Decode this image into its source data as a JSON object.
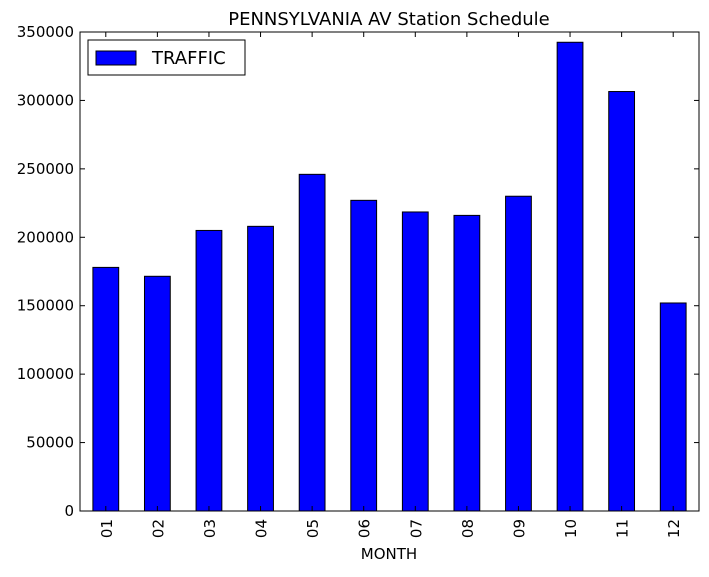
{
  "chart_data": {
    "type": "bar",
    "title": "PENNSYLVANIA AV Station Schedule",
    "xlabel": "MONTH",
    "ylabel": "",
    "categories": [
      "01",
      "02",
      "03",
      "04",
      "05",
      "06",
      "07",
      "08",
      "09",
      "10",
      "11",
      "12"
    ],
    "series": [
      {
        "name": "TRAFFIC",
        "values": [
          178000,
          171500,
          205000,
          208000,
          246000,
          227000,
          218500,
          216000,
          230000,
          342500,
          306500,
          152000
        ]
      }
    ],
    "ylim": [
      0,
      350000
    ],
    "yticks": [
      "0",
      "50000",
      "100000",
      "150000",
      "200000",
      "250000",
      "300000",
      "350000"
    ],
    "grid": false,
    "legend_position": "top-left",
    "colors": {
      "bar": "#0000ff",
      "edge": "#000000",
      "background": "#ffffff"
    }
  }
}
